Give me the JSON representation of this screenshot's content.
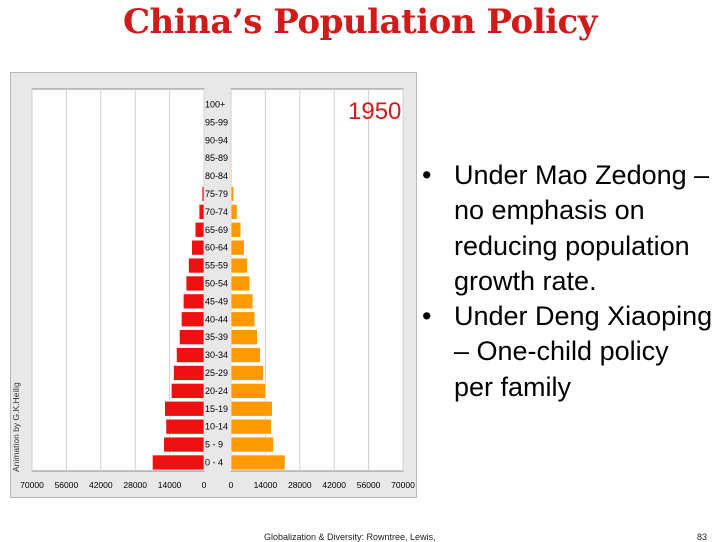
{
  "slide": {
    "title": "China’s Population Policy",
    "footer": "Globalization & Diversity: Rowntree, Lewis,",
    "page_number": "83",
    "bullets": [
      "Under Mao Zedong – no emphasis on reducing population growth rate.",
      "Under Deng Xiaoping – One-child policy per family"
    ],
    "bullet_char": "•"
  },
  "colors": {
    "title": "#d11a1a",
    "male": "#ee1111",
    "female": "#ff9900",
    "year": "#d11a1a"
  },
  "chart_data": {
    "type": "bar",
    "orientation": "horizontal",
    "year_label": "1950",
    "credit": "Animation by G.K.Heilig",
    "categories": [
      "100+",
      "95-99",
      "90-94",
      "85-89",
      "80-84",
      "75-79",
      "70-74",
      "65-69",
      "60-64",
      "55-59",
      "50-54",
      "45-49",
      "40-44",
      "35-39",
      "30-34",
      "25-29",
      "20-24",
      "15-19",
      "10-14",
      "5 - 9",
      "0 - 4"
    ],
    "series": [
      {
        "values": [
          0,
          0,
          0,
          0,
          300,
          800,
          2000,
          3600,
          5000,
          6300,
          7300,
          8400,
          9200,
          10000,
          11200,
          12400,
          13300,
          16000,
          15500,
          16400,
          21000
        ]
      },
      {
        "values": [
          0,
          0,
          0,
          0,
          400,
          1100,
          2500,
          4000,
          5400,
          6700,
          7700,
          8900,
          9700,
          10700,
          11900,
          13200,
          14100,
          16800,
          16400,
          17300,
          22000
        ]
      }
    ],
    "left_ticks": [
      "70000",
      "56000",
      "42000",
      "28000",
      "14000",
      "0"
    ],
    "right_ticks": [
      "0",
      "14000",
      "28000",
      "42000",
      "56000",
      "70000"
    ],
    "xlim": [
      0,
      70000
    ]
  }
}
